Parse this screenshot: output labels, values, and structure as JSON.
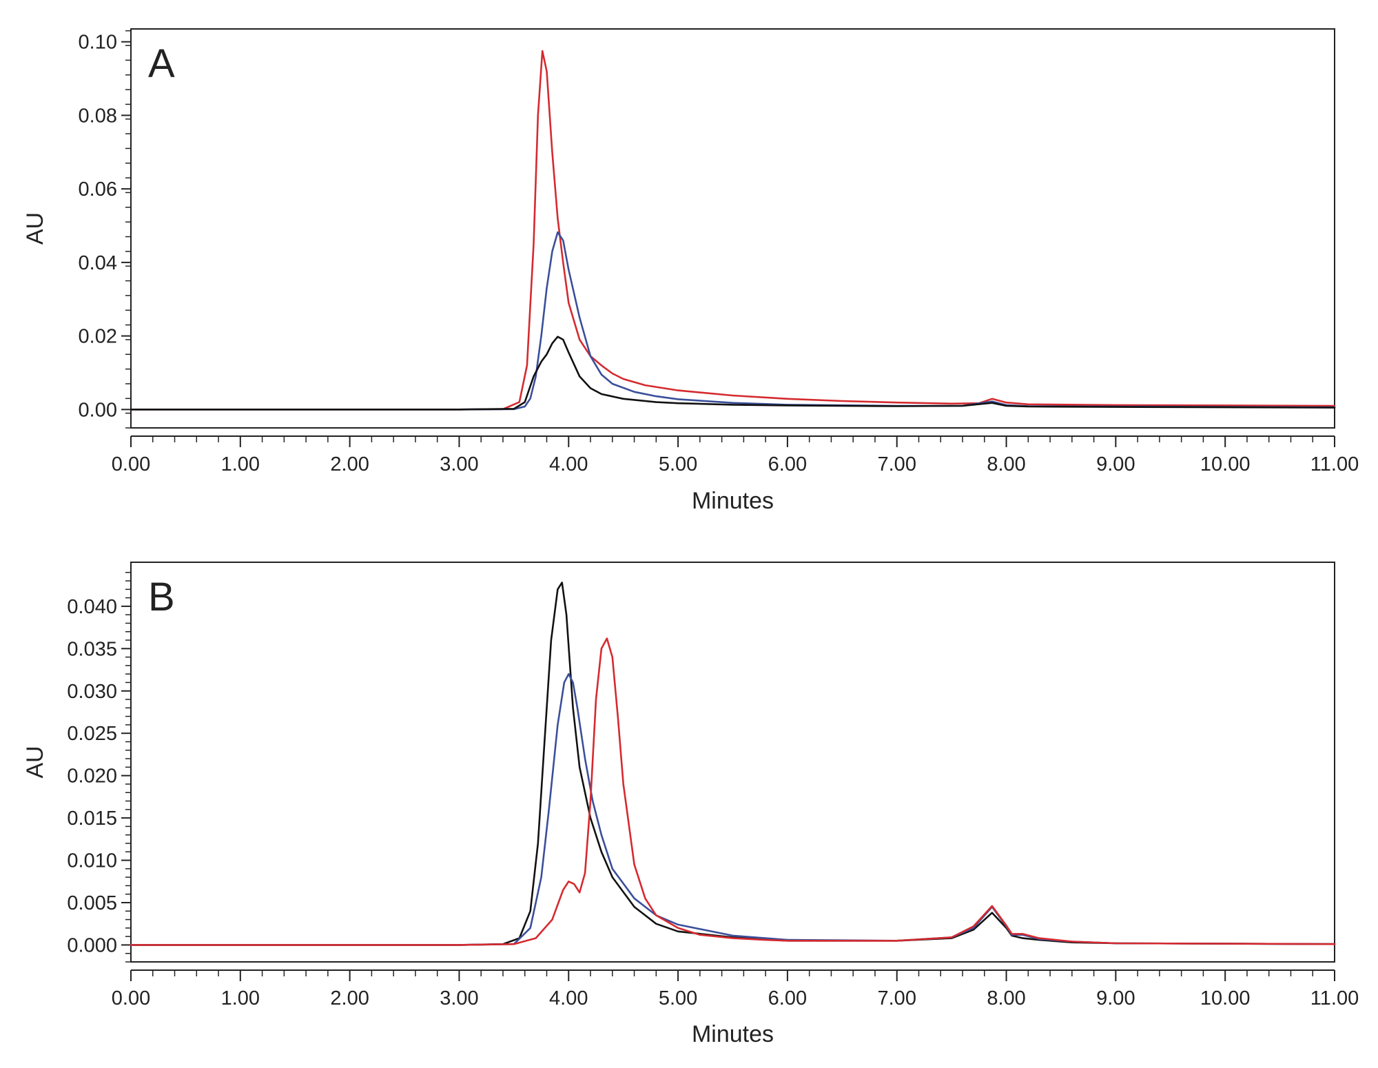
{
  "colors": {
    "red": "#d42a2f",
    "blue": "#3a4f9a",
    "black": "#111111",
    "axis": "#222222"
  },
  "chart_data": [
    {
      "type": "line",
      "panel_label": "A",
      "xlabel": "Minutes",
      "ylabel": "AU",
      "xlim": [
        0,
        11
      ],
      "ylim": [
        -0.005,
        0.1035
      ],
      "grid": false,
      "x_ticks": [
        "0.00",
        "1.00",
        "2.00",
        "3.00",
        "4.00",
        "5.00",
        "6.00",
        "7.00",
        "8.00",
        "9.00",
        "10.00",
        "11.00"
      ],
      "y_ticks": [
        "0.00",
        "0.02",
        "0.04",
        "0.06",
        "0.08",
        "0.10"
      ],
      "series": [
        {
          "color": "#d42a2f",
          "x": [
            0,
            1,
            2,
            3,
            3.4,
            3.55,
            3.62,
            3.68,
            3.72,
            3.76,
            3.8,
            3.85,
            3.9,
            3.95,
            4.0,
            4.1,
            4.2,
            4.3,
            4.4,
            4.5,
            4.7,
            5.0,
            5.5,
            6.0,
            6.5,
            7.0,
            7.5,
            7.75,
            7.87,
            8.0,
            8.2,
            9.0,
            10.0,
            11.0
          ],
          "y": [
            0,
            0,
            0,
            0,
            0.0001,
            0.002,
            0.012,
            0.045,
            0.08,
            0.0975,
            0.092,
            0.07,
            0.052,
            0.04,
            0.029,
            0.019,
            0.0145,
            0.012,
            0.0098,
            0.0083,
            0.0066,
            0.0052,
            0.0038,
            0.0029,
            0.0023,
            0.0019,
            0.0016,
            0.0017,
            0.0029,
            0.0019,
            0.0014,
            0.0012,
            0.0011,
            0.001
          ]
        },
        {
          "color": "#3a4f9a",
          "x": [
            0,
            1,
            2,
            3,
            3.5,
            3.6,
            3.65,
            3.7,
            3.75,
            3.8,
            3.85,
            3.9,
            3.95,
            4.0,
            4.1,
            4.2,
            4.3,
            4.4,
            4.6,
            4.8,
            5.0,
            5.5,
            6.0,
            7.0,
            7.6,
            7.87,
            8.0,
            8.2,
            9.0,
            11.0
          ],
          "y": [
            0,
            0,
            0,
            0,
            0.0001,
            0.0008,
            0.003,
            0.009,
            0.02,
            0.033,
            0.043,
            0.0482,
            0.046,
            0.038,
            0.025,
            0.0145,
            0.0095,
            0.007,
            0.0048,
            0.0036,
            0.0028,
            0.0018,
            0.0013,
            0.001,
            0.001,
            0.0022,
            0.0012,
            0.0009,
            0.0008,
            0.0006
          ]
        },
        {
          "color": "#111111",
          "x": [
            0,
            1,
            2,
            3,
            3.5,
            3.6,
            3.68,
            3.75,
            3.8,
            3.85,
            3.9,
            3.95,
            4.0,
            4.1,
            4.2,
            4.3,
            4.5,
            4.8,
            5.0,
            5.5,
            6.0,
            7.0,
            7.6,
            7.87,
            8.0,
            8.2,
            9.0,
            11.0
          ],
          "y": [
            0,
            0,
            0,
            0,
            0.0002,
            0.002,
            0.009,
            0.013,
            0.015,
            0.018,
            0.0198,
            0.019,
            0.0155,
            0.009,
            0.0058,
            0.0042,
            0.0029,
            0.002,
            0.0017,
            0.0013,
            0.0011,
            0.0009,
            0.001,
            0.0018,
            0.001,
            0.0008,
            0.0007,
            0.0005
          ]
        }
      ]
    },
    {
      "type": "line",
      "panel_label": "B",
      "xlabel": "Minutes",
      "ylabel": "AU",
      "xlim": [
        0,
        11
      ],
      "ylim": [
        -0.002,
        0.0452
      ],
      "grid": false,
      "x_ticks": [
        "0.00",
        "1.00",
        "2.00",
        "3.00",
        "4.00",
        "5.00",
        "6.00",
        "7.00",
        "8.00",
        "9.00",
        "10.00",
        "11.00"
      ],
      "y_ticks": [
        "0.000",
        "0.005",
        "0.010",
        "0.015",
        "0.020",
        "0.025",
        "0.030",
        "0.035",
        "0.040"
      ],
      "series": [
        {
          "color": "#111111",
          "x": [
            0,
            1,
            2,
            3,
            3.4,
            3.55,
            3.65,
            3.72,
            3.78,
            3.84,
            3.9,
            3.94,
            3.98,
            4.04,
            4.1,
            4.2,
            4.3,
            4.4,
            4.6,
            4.8,
            5.0,
            5.5,
            6.0,
            7.0,
            7.5,
            7.7,
            7.87,
            8.0,
            8.05,
            8.15,
            8.3,
            8.6,
            9.0,
            11.0
          ],
          "y": [
            0,
            0,
            0,
            0,
            0.0001,
            0.0008,
            0.004,
            0.012,
            0.024,
            0.036,
            0.042,
            0.0428,
            0.039,
            0.028,
            0.021,
            0.015,
            0.011,
            0.008,
            0.0045,
            0.0025,
            0.0016,
            0.0009,
            0.0005,
            0.0005,
            0.0008,
            0.0018,
            0.0038,
            0.002,
            0.0011,
            0.0008,
            0.0006,
            0.0003,
            0.0002,
            0.0001
          ]
        },
        {
          "color": "#3a4f9a",
          "x": [
            0,
            1,
            2,
            3,
            3.5,
            3.65,
            3.75,
            3.82,
            3.9,
            3.96,
            4.0,
            4.04,
            4.08,
            4.15,
            4.22,
            4.3,
            4.4,
            4.6,
            4.8,
            5.0,
            5.5,
            6.0,
            7.0,
            7.5,
            7.7,
            7.87,
            8.0,
            8.05,
            8.15,
            8.3,
            8.6,
            9.0,
            11.0
          ],
          "y": [
            0,
            0,
            0,
            0,
            0.0001,
            0.002,
            0.008,
            0.016,
            0.026,
            0.031,
            0.032,
            0.031,
            0.028,
            0.022,
            0.017,
            0.013,
            0.009,
            0.0055,
            0.0035,
            0.0024,
            0.0011,
            0.0006,
            0.0005,
            0.0009,
            0.002,
            0.0045,
            0.0022,
            0.0012,
            0.0012,
            0.0007,
            0.0004,
            0.0002,
            0.0001
          ]
        },
        {
          "color": "#d42a2f",
          "x": [
            0,
            1,
            2,
            3,
            3.5,
            3.7,
            3.85,
            3.95,
            4.0,
            4.05,
            4.1,
            4.15,
            4.2,
            4.25,
            4.3,
            4.35,
            4.4,
            4.45,
            4.5,
            4.6,
            4.7,
            4.8,
            5.0,
            5.2,
            5.5,
            5.8,
            6.0,
            7.0,
            7.5,
            7.7,
            7.87,
            8.0,
            8.05,
            8.15,
            8.3,
            8.6,
            9.0,
            11.0
          ],
          "y": [
            0,
            0,
            0,
            0,
            0.0001,
            0.0008,
            0.003,
            0.0065,
            0.0075,
            0.0072,
            0.0062,
            0.0085,
            0.017,
            0.029,
            0.035,
            0.0362,
            0.034,
            0.027,
            0.019,
            0.0095,
            0.0055,
            0.0035,
            0.002,
            0.0012,
            0.0008,
            0.0006,
            0.0005,
            0.0005,
            0.0009,
            0.0022,
            0.0046,
            0.0023,
            0.0013,
            0.0013,
            0.0008,
            0.0004,
            0.0002,
            0.0001
          ]
        }
      ]
    }
  ]
}
